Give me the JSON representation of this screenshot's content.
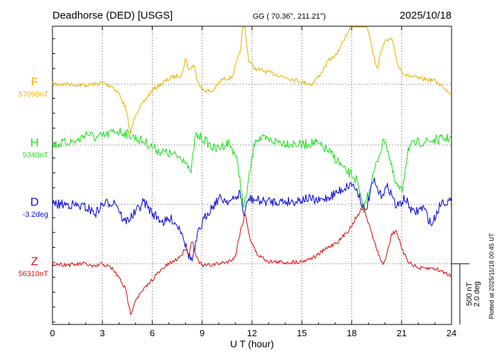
{
  "header": {
    "station": "Deadhorse (DED)  [USGS]",
    "coords": "GG ( 70.36°, 211.21°)",
    "date": "2025/10/18"
  },
  "footer": {
    "plotted": "Plotted at 2025/11/18 00:45 UT"
  },
  "colors": {
    "F": "#f0b000",
    "H": "#22e022",
    "D": "#1010dd",
    "Z": "#e01515",
    "grid": "#555555",
    "axis": "#000000"
  },
  "chart_data": {
    "type": "line",
    "xlabel": "U T (hour)",
    "xlim": [
      0,
      24
    ],
    "x_ticks": [
      "0",
      "3",
      "6",
      "9",
      "12",
      "15",
      "18",
      "21",
      "24"
    ],
    "scale_bar": {
      "label1": "500 nT",
      "label2": "2.0 deg"
    },
    "series": [
      {
        "name": "F",
        "baseline_label": "57090nT",
        "unit": "nT",
        "points": [
          [
            0,
            0
          ],
          [
            1,
            0
          ],
          [
            2,
            -10
          ],
          [
            3,
            10
          ],
          [
            3.6,
            -20
          ],
          [
            4,
            -80
          ],
          [
            4.4,
            -200
          ],
          [
            4.7,
            -420
          ],
          [
            5,
            -250
          ],
          [
            5.5,
            -150
          ],
          [
            6,
            -50
          ],
          [
            6.5,
            0
          ],
          [
            7.2,
            60
          ],
          [
            7.8,
            80
          ],
          [
            8,
            220
          ],
          [
            8.2,
            120
          ],
          [
            8.5,
            160
          ],
          [
            8.7,
            50
          ],
          [
            9,
            -50
          ],
          [
            9.6,
            -60
          ],
          [
            10.2,
            40
          ],
          [
            10.8,
            60
          ],
          [
            11.3,
            280
          ],
          [
            11.5,
            560
          ],
          [
            11.8,
            200
          ],
          [
            12.2,
            130
          ],
          [
            13,
            100
          ],
          [
            14,
            60
          ],
          [
            15,
            20
          ],
          [
            15.6,
            0
          ],
          [
            16.2,
            100
          ],
          [
            16.6,
            200
          ],
          [
            17.1,
            250
          ],
          [
            17.6,
            400
          ],
          [
            18,
            500
          ],
          [
            18.4,
            570
          ],
          [
            18.7,
            590
          ],
          [
            19.1,
            400
          ],
          [
            19.5,
            120
          ],
          [
            19.9,
            350
          ],
          [
            20.4,
            380
          ],
          [
            20.8,
            150
          ],
          [
            21.2,
            80
          ],
          [
            22,
            50
          ],
          [
            23,
            30
          ],
          [
            24,
            -80
          ]
        ]
      },
      {
        "name": "H",
        "baseline_label": "9340nT",
        "unit": "nT",
        "points": [
          [
            0,
            0
          ],
          [
            0.8,
            20
          ],
          [
            1.6,
            40
          ],
          [
            2,
            100
          ],
          [
            2.6,
            60
          ],
          [
            3.2,
            80
          ],
          [
            3.8,
            120
          ],
          [
            4.4,
            100
          ],
          [
            4.7,
            80
          ],
          [
            5,
            60
          ],
          [
            5.6,
            20
          ],
          [
            6.4,
            -50
          ],
          [
            7.2,
            -80
          ],
          [
            8,
            -120
          ],
          [
            8.3,
            -260
          ],
          [
            8.6,
            80
          ],
          [
            9,
            60
          ],
          [
            9.8,
            -40
          ],
          [
            10.6,
            20
          ],
          [
            11,
            -80
          ],
          [
            11.3,
            -300
          ],
          [
            11.5,
            -550
          ],
          [
            11.8,
            -300
          ],
          [
            12.2,
            60
          ],
          [
            13,
            40
          ],
          [
            14,
            20
          ],
          [
            15,
            0
          ],
          [
            15.8,
            20
          ],
          [
            16.5,
            -40
          ],
          [
            17.2,
            -140
          ],
          [
            17.6,
            -220
          ],
          [
            18,
            -250
          ],
          [
            18.3,
            -300
          ],
          [
            18.7,
            -550
          ],
          [
            19.1,
            -350
          ],
          [
            19.6,
            -100
          ],
          [
            20,
            60
          ],
          [
            20.6,
            -320
          ],
          [
            21,
            -400
          ],
          [
            21.4,
            -20
          ],
          [
            22,
            20
          ],
          [
            23,
            40
          ],
          [
            24,
            60
          ]
        ]
      },
      {
        "name": "D",
        "baseline_label": "-3.2deg",
        "unit": "deg",
        "points": [
          [
            0,
            0
          ],
          [
            1,
            0
          ],
          [
            2,
            -0.1
          ],
          [
            2.6,
            -0.3
          ],
          [
            3,
            0
          ],
          [
            3.8,
            0.1
          ],
          [
            4.3,
            -0.6
          ],
          [
            4.8,
            -0.4
          ],
          [
            5.5,
            0.1
          ],
          [
            6,
            -0.3
          ],
          [
            6.7,
            -0.6
          ],
          [
            7.2,
            -0.5
          ],
          [
            7.8,
            -0.9
          ],
          [
            8.1,
            -1.6
          ],
          [
            8.4,
            -1.9
          ],
          [
            8.8,
            -0.9
          ],
          [
            9.3,
            -0.3
          ],
          [
            10,
            0.2
          ],
          [
            10.8,
            0.1
          ],
          [
            11.3,
            0.4
          ],
          [
            11.5,
            -0.4
          ],
          [
            11.8,
            0.2
          ],
          [
            12.6,
            0.1
          ],
          [
            13.5,
            0.1
          ],
          [
            14.5,
            0.1
          ],
          [
            15.3,
            0.2
          ],
          [
            16,
            0.1
          ],
          [
            16.8,
            0.3
          ],
          [
            17.4,
            0.5
          ],
          [
            18,
            0.7
          ],
          [
            18.4,
            0.4
          ],
          [
            18.8,
            -0.3
          ],
          [
            19.3,
            0.8
          ],
          [
            19.7,
            0.3
          ],
          [
            20.2,
            0.6
          ],
          [
            20.7,
            -0.1
          ],
          [
            21.2,
            0.2
          ],
          [
            21.7,
            -0.3
          ],
          [
            22.3,
            -0.1
          ],
          [
            22.8,
            -0.7
          ],
          [
            23.4,
            0.1
          ],
          [
            24,
            0.1
          ]
        ]
      },
      {
        "name": "Z",
        "baseline_label": "56310nT",
        "unit": "nT",
        "points": [
          [
            0,
            0
          ],
          [
            1,
            -10
          ],
          [
            2,
            0
          ],
          [
            2.5,
            -30
          ],
          [
            3,
            0
          ],
          [
            3.6,
            -40
          ],
          [
            4.1,
            -140
          ],
          [
            4.4,
            -220
          ],
          [
            4.7,
            -420
          ],
          [
            5,
            -300
          ],
          [
            5.6,
            -200
          ],
          [
            6.2,
            -100
          ],
          [
            6.8,
            -20
          ],
          [
            7.4,
            30
          ],
          [
            7.8,
            80
          ],
          [
            8,
            140
          ],
          [
            8.2,
            80
          ],
          [
            8.4,
            200
          ],
          [
            8.7,
            40
          ],
          [
            9,
            -20
          ],
          [
            10,
            0
          ],
          [
            10.6,
            20
          ],
          [
            11,
            60
          ],
          [
            11.3,
            280
          ],
          [
            11.6,
            420
          ],
          [
            11.9,
            200
          ],
          [
            12.3,
            80
          ],
          [
            13,
            20
          ],
          [
            14,
            10
          ],
          [
            15,
            20
          ],
          [
            15.8,
            60
          ],
          [
            16.6,
            140
          ],
          [
            17.3,
            200
          ],
          [
            17.9,
            300
          ],
          [
            18.3,
            400
          ],
          [
            18.7,
            480
          ],
          [
            19.1,
            300
          ],
          [
            19.5,
            120
          ],
          [
            19.9,
            -20
          ],
          [
            20.4,
            250
          ],
          [
            20.7,
            280
          ],
          [
            21,
            120
          ],
          [
            21.4,
            20
          ],
          [
            22,
            -40
          ],
          [
            23,
            -40
          ],
          [
            24,
            -100
          ]
        ]
      }
    ]
  }
}
